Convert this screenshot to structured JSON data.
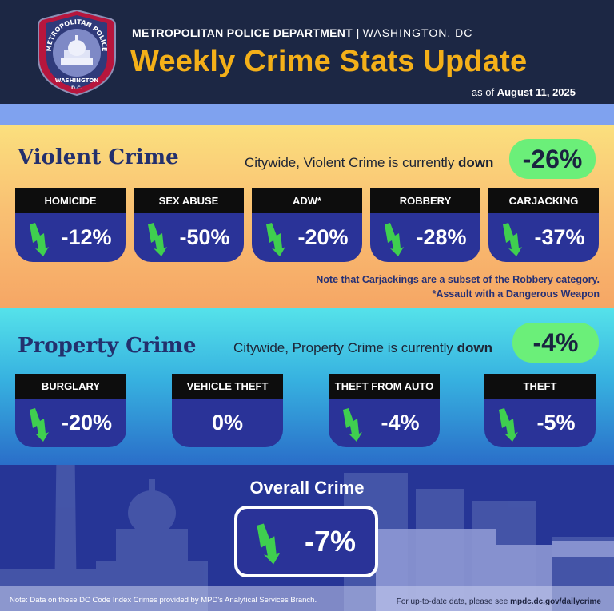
{
  "header": {
    "department": "METROPOLITAN POLICE DEPARTMENT",
    "separator": " | ",
    "city": "WASHINGTON, DC",
    "title": "Weekly Crime Stats Update",
    "as_of_prefix": "as of ",
    "as_of_date": "August 11, 2025",
    "badge_top_text": "METROPOLITAN POLICE",
    "badge_bottom_text": "WASHINGTON",
    "badge_dc": "D.C."
  },
  "violent": {
    "title": "Violent Crime",
    "summary_prefix": "Citywide, Violent Crime is currently ",
    "summary_dir": "down",
    "change": "-26%",
    "cards": [
      {
        "label": "HOMICIDE",
        "value": "-12%",
        "trend": "down"
      },
      {
        "label": "SEX ABUSE",
        "value": "-50%",
        "trend": "down"
      },
      {
        "label": "ADW*",
        "value": "-20%",
        "trend": "down"
      },
      {
        "label": "ROBBERY",
        "value": "-28%",
        "trend": "down"
      },
      {
        "label": "CARJACKING",
        "value": "-37%",
        "trend": "down"
      }
    ],
    "note_1": "Note that Carjackings are a subset of the Robbery category.",
    "note_2": "*Assault with a Dangerous Weapon"
  },
  "property": {
    "title": "Property Crime",
    "summary_prefix": "Citywide, Property Crime is currently ",
    "summary_dir": "down",
    "change": "-4%",
    "cards": [
      {
        "label": "BURGLARY",
        "value": "-20%",
        "trend": "down"
      },
      {
        "label": "VEHICLE THEFT",
        "value": "0%",
        "trend": "none"
      },
      {
        "label": "THEFT FROM AUTO",
        "value": "-4%",
        "trend": "down"
      },
      {
        "label": "THEFT",
        "value": "-5%",
        "trend": "down"
      }
    ]
  },
  "overall": {
    "title": "Overall Crime",
    "value": "-7%",
    "trend": "down"
  },
  "footer": {
    "note": "Note: Data on these DC Code Index Crimes provided by MPD's Analytical Services Branch.",
    "link_prefix": "For up-to-date data, please see ",
    "link": "mpdc.dc.gov/dailycrime"
  },
  "colors": {
    "header_bg": "#1c2744",
    "title_gold": "#f4b019",
    "pill_green": "#6bef79",
    "card_blue": "#2a3398",
    "arrow_green": "#3fcf4f"
  }
}
